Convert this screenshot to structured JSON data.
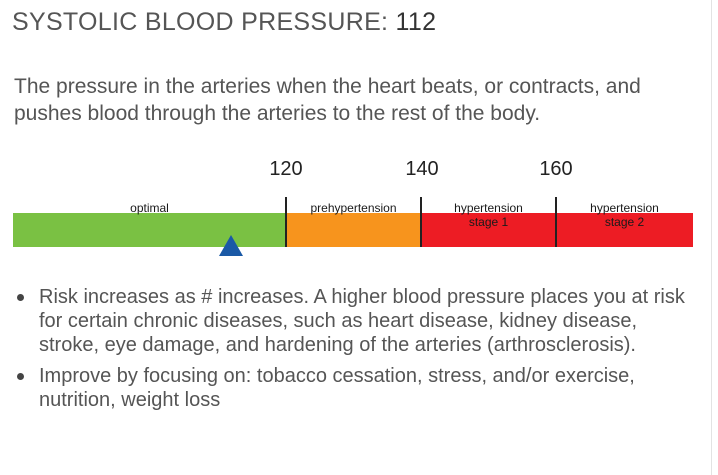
{
  "header": {
    "title_prefix": "SYSTOLIC BLOOD PRESSURE:",
    "value": "112"
  },
  "description": "The pressure in the arteries when the heart beats, or contracts, and pushes blood through the arteries to the rest of the body.",
  "scale": {
    "ticks": [
      "120",
      "140",
      "160"
    ],
    "segments": [
      {
        "label": "optimal",
        "sublabel": "",
        "color": "#7ac143"
      },
      {
        "label": "prehypertension",
        "sublabel": "",
        "color": "#f7941d"
      },
      {
        "label": "hypertension",
        "sublabel": "stage 1",
        "color": "#ed1c24"
      },
      {
        "label": "hypertension",
        "sublabel": "stage 2",
        "color": "#ed1c24"
      }
    ],
    "marker_color": "#1a59a6"
  },
  "bullets": [
    "Risk increases as # increases. A higher blood pressure places you at risk for certain chronic diseases, such as heart disease, kidney disease, stroke, eye damage, and hardening of the arteries (arthrosclerosis).",
    "Improve by focusing on: tobacco cessation, stress, and/or exercise, nutrition, weight loss"
  ]
}
